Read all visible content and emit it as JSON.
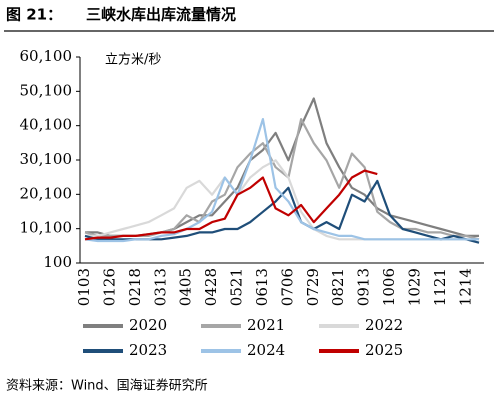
{
  "figure_label": "图 21：",
  "source": "资料来源：Wind、国海证券研究所",
  "chart_data": {
    "type": "line",
    "title": "三峡水库出库流量情况",
    "unit_label": "立方米/秒",
    "categories": [
      "0103",
      null,
      "0126",
      null,
      "0218",
      null,
      "0313",
      null,
      "0405",
      null,
      "0428",
      null,
      "0521",
      null,
      "0613",
      null,
      "0706",
      null,
      "0729",
      null,
      "0821",
      null,
      "0913",
      null,
      "1006",
      null,
      "1029",
      null,
      "1121",
      null,
      "1214",
      null
    ],
    "ylim": [
      100,
      60100
    ],
    "yticks": [
      100,
      {
        "value": 10100,
        "label": "10,100"
      },
      {
        "value": 20100,
        "label": "20,100"
      },
      {
        "value": 30100,
        "label": "30,100"
      },
      {
        "value": 40100,
        "label": "40,100"
      },
      {
        "value": 50100,
        "label": "50,100"
      },
      {
        "value": 60100,
        "label": "60,100"
      }
    ],
    "series": [
      {
        "name": "2020",
        "color": "#7f7f7f",
        "values": [
          9000,
          9000,
          8000,
          8000,
          8000,
          8500,
          9000,
          10000,
          12000,
          14000,
          14000,
          18000,
          22000,
          30000,
          33000,
          38000,
          30000,
          40000,
          48000,
          35000,
          28000,
          22000,
          20000,
          16000,
          14000,
          13000,
          12000,
          11000,
          10000,
          9000,
          8000,
          8000
        ]
      },
      {
        "name": "2021",
        "color": "#a6a6a6",
        "values": [
          9000,
          8000,
          8000,
          8000,
          8000,
          8000,
          9000,
          10000,
          14000,
          12000,
          18000,
          20000,
          28000,
          32000,
          35000,
          28000,
          25000,
          42000,
          35000,
          30000,
          22000,
          32000,
          28000,
          15000,
          12000,
          10000,
          10000,
          9000,
          9000,
          8000,
          8000,
          7000
        ]
      },
      {
        "name": "2022",
        "color": "#d9d9d9",
        "values": [
          8000,
          8000,
          9000,
          10000,
          11000,
          12000,
          14000,
          16000,
          22000,
          24000,
          20000,
          25000,
          20000,
          25000,
          28000,
          30000,
          25000,
          15000,
          10000,
          8000,
          7000,
          7000,
          7000,
          7000,
          7000,
          7000,
          7000,
          7000,
          7000,
          7000,
          7000,
          6000
        ]
      },
      {
        "name": "2023",
        "color": "#1f4e79",
        "values": [
          8000,
          7000,
          7000,
          7000,
          7000,
          7000,
          7000,
          7500,
          8000,
          9000,
          9000,
          10000,
          10000,
          12000,
          15000,
          18000,
          22000,
          12000,
          10000,
          12000,
          10000,
          20000,
          18000,
          24000,
          14000,
          10000,
          9000,
          8000,
          7000,
          8000,
          7000,
          6000
        ]
      },
      {
        "name": "2024",
        "color": "#9dc3e6",
        "values": [
          7000,
          6500,
          6500,
          6500,
          7000,
          7000,
          8000,
          8500,
          10000,
          12000,
          15000,
          25000,
          20000,
          30000,
          42000,
          22000,
          18000,
          12000,
          10000,
          9000,
          8000,
          8000,
          7000,
          7000,
          7000,
          7000,
          7000,
          7000,
          7000,
          7000,
          7000,
          7000
        ]
      },
      {
        "name": "2025",
        "color": "#c00000",
        "values": [
          7000,
          7500,
          7500,
          8000,
          8000,
          8500,
          9000,
          9000,
          10000,
          10000,
          12000,
          13000,
          20000,
          22000,
          25000,
          16000,
          14000,
          17000,
          12000,
          16000,
          20000,
          25000,
          27000,
          26000,
          null,
          null,
          null,
          null,
          null,
          null,
          null,
          null
        ]
      }
    ]
  }
}
